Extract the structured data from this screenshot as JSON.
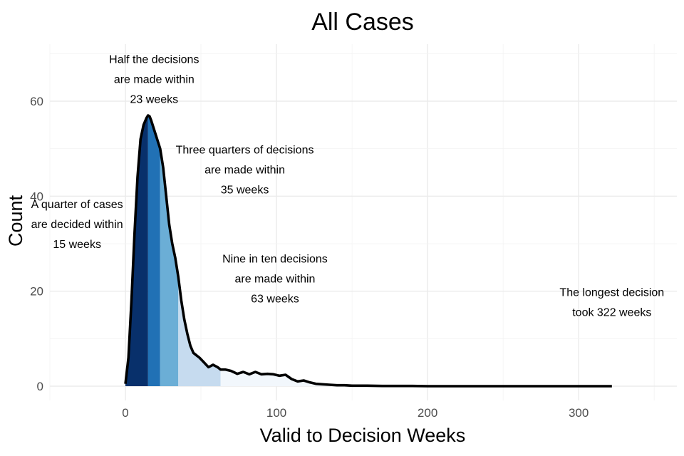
{
  "chart_data": {
    "type": "area",
    "title": "All Cases",
    "xlabel": "Valid to Decision Weeks",
    "ylabel": "Count",
    "xlim": [
      -50,
      365
    ],
    "ylim": [
      -3,
      72
    ],
    "x_ticks": [
      0,
      100,
      200,
      300
    ],
    "y_ticks": [
      0,
      20,
      40,
      60
    ],
    "grid": true,
    "legend": "none",
    "quantiles": [
      {
        "name": "quarter",
        "weeks": 15,
        "color": "#08306b"
      },
      {
        "name": "half",
        "weeks": 23,
        "color": "#2171b5"
      },
      {
        "name": "three-quarters",
        "weeks": 35,
        "color": "#6baed6"
      },
      {
        "name": "nine-in-ten",
        "weeks": 63,
        "color": "#c6dbef"
      },
      {
        "name": "max",
        "weeks": 322,
        "color": "#f2f7fc"
      }
    ],
    "x": [
      0,
      2,
      4,
      6,
      8,
      10,
      12,
      14,
      15,
      16,
      17,
      18,
      20,
      22,
      23,
      25,
      27,
      29,
      31,
      33,
      35,
      37,
      39,
      41,
      43,
      45,
      47,
      49,
      52,
      55,
      58,
      61,
      63,
      66,
      70,
      74,
      78,
      82,
      86,
      90,
      94,
      98,
      102,
      106,
      110,
      114,
      118,
      122,
      126,
      130,
      135,
      140,
      145,
      150,
      160,
      170,
      180,
      190,
      200,
      220,
      240,
      260,
      280,
      300,
      322
    ],
    "values": [
      0.5,
      6,
      18,
      32,
      44,
      52,
      55,
      56.5,
      57,
      56.8,
      56,
      55,
      53,
      51,
      50,
      46,
      40,
      34,
      30,
      27,
      23,
      18,
      14,
      11,
      8.5,
      7,
      6.5,
      6,
      5,
      4,
      4.5,
      4,
      3.5,
      3.5,
      3.2,
      2.6,
      3,
      2.5,
      3,
      2.5,
      2.6,
      2.5,
      2.2,
      2.4,
      1.5,
      1.0,
      1.2,
      0.8,
      0.5,
      0.4,
      0.3,
      0.2,
      0.2,
      0.1,
      0.1,
      0.05,
      0.05,
      0.05,
      0.0,
      0.0,
      0.0,
      0.0,
      0.0,
      0.0,
      0.0
    ],
    "annotations": [
      {
        "lines": [
          "A quarter of cases",
          "are decided within",
          "15 weeks"
        ],
        "x": -32,
        "y": 37.5
      },
      {
        "lines": [
          "Half the decisions",
          "are made within",
          "23 weeks"
        ],
        "x": 19,
        "y": 68
      },
      {
        "lines": [
          "Three quarters of decisions",
          "are made within",
          "35 weeks"
        ],
        "x": 79,
        "y": 49
      },
      {
        "lines": [
          "Nine in ten decisions",
          "are made within",
          "63 weeks"
        ],
        "x": 99,
        "y": 26
      },
      {
        "lines": [
          "The longest decision",
          "took 322 weeks"
        ],
        "x": 322,
        "y": 19
      }
    ]
  }
}
